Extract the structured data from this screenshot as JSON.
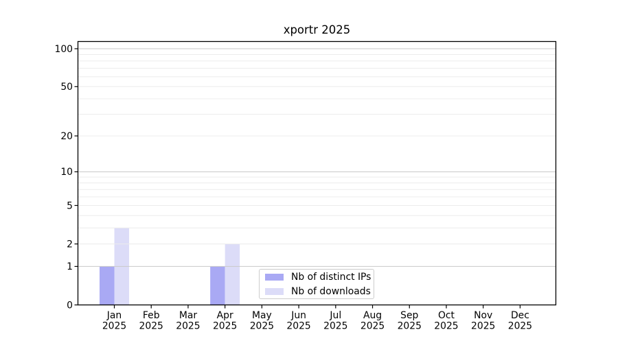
{
  "chart_data": {
    "type": "bar",
    "title": "xportr 2025",
    "categories": [
      "Jan",
      "Feb",
      "Mar",
      "Apr",
      "May",
      "Jun",
      "Jul",
      "Aug",
      "Sep",
      "Oct",
      "Nov",
      "Dec"
    ],
    "xtick_year_line": "2025",
    "series": [
      {
        "name": "Nb of distinct IPs",
        "color": "#a9a9f4",
        "values": [
          1,
          0,
          0,
          1,
          0,
          0,
          0,
          0,
          0,
          0,
          0,
          0
        ]
      },
      {
        "name": "Nb of downloads",
        "color": "#dcdcf8",
        "values": [
          3,
          0,
          0,
          2,
          0,
          0,
          0,
          0,
          0,
          0,
          0,
          0
        ]
      }
    ],
    "yscale": "log1p",
    "ylim": [
      0,
      114
    ],
    "yticks": {
      "values": [
        0,
        1,
        2,
        5,
        10,
        20,
        50,
        100
      ],
      "labels": [
        "0",
        "1",
        "2",
        "5",
        "10",
        "20",
        "50",
        "100"
      ]
    },
    "grid": {
      "minor_values": [
        2,
        3,
        4,
        6,
        7,
        8,
        9,
        20,
        30,
        40,
        60,
        70,
        80,
        90
      ],
      "labeled_minor_values": [
        5,
        50
      ],
      "major_values": [
        1,
        10,
        100
      ],
      "minor_color": "#ececec",
      "major_color": "#c9c9c9"
    },
    "axis_color": "#000000",
    "legend_position": "lower center"
  }
}
